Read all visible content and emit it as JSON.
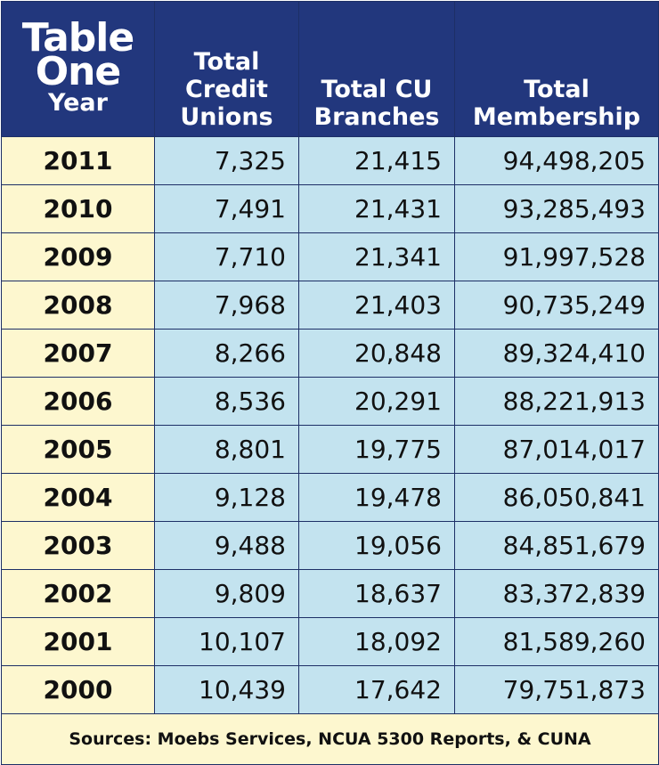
{
  "chart_data": {
    "type": "table",
    "title": [
      "Table",
      "One"
    ],
    "columns": [
      "Year",
      [
        "Total",
        "Credit",
        "Unions"
      ],
      [
        "Total CU",
        "Branches"
      ],
      [
        "Total",
        "Membership"
      ]
    ],
    "rows": [
      {
        "year": "2011",
        "credit_unions": "7,325",
        "branches": "21,415",
        "membership": "94,498,205"
      },
      {
        "year": "2010",
        "credit_unions": "7,491",
        "branches": "21,431",
        "membership": "93,285,493"
      },
      {
        "year": "2009",
        "credit_unions": "7,710",
        "branches": "21,341",
        "membership": "91,997,528"
      },
      {
        "year": "2008",
        "credit_unions": "7,968",
        "branches": "21,403",
        "membership": "90,735,249"
      },
      {
        "year": "2007",
        "credit_unions": "8,266",
        "branches": "20,848",
        "membership": "89,324,410"
      },
      {
        "year": "2006",
        "credit_unions": "8,536",
        "branches": "20,291",
        "membership": "88,221,913"
      },
      {
        "year": "2005",
        "credit_unions": "8,801",
        "branches": "19,775",
        "membership": "87,014,017"
      },
      {
        "year": "2004",
        "credit_unions": "9,128",
        "branches": "19,478",
        "membership": "86,050,841"
      },
      {
        "year": "2003",
        "credit_unions": "9,488",
        "branches": "19,056",
        "membership": "84,851,679"
      },
      {
        "year": "2002",
        "credit_unions": "9,809",
        "branches": "18,637",
        "membership": "83,372,839"
      },
      {
        "year": "2001",
        "credit_unions": "10,107",
        "branches": "18,092",
        "membership": "81,589,260"
      },
      {
        "year": "2000",
        "credit_unions": "10,439",
        "branches": "17,642",
        "membership": "79,751,873"
      }
    ],
    "source": "Sources: Moebs Services, NCUA 5300 Reports, & CUNA"
  },
  "colors": {
    "header_bg": "#22377d",
    "year_bg": "#fdf7cf",
    "value_bg": "#c3e3ef",
    "border": "#1d2f66"
  }
}
